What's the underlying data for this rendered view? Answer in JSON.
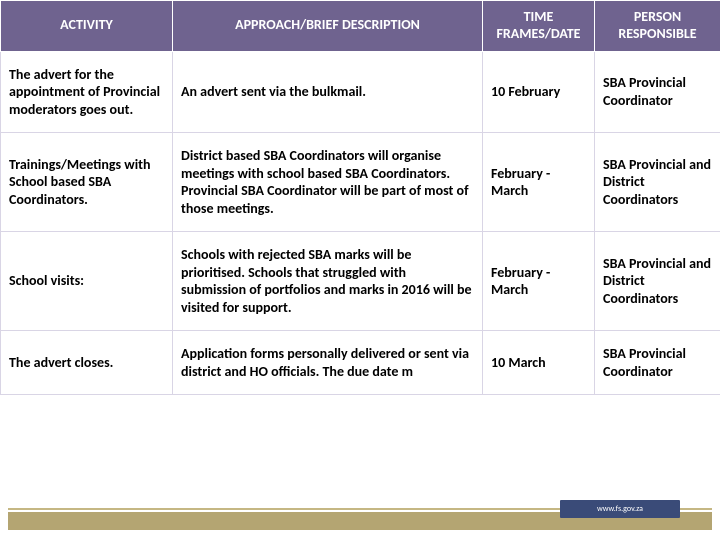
{
  "table": {
    "headers": {
      "activity": "ACTIVITY",
      "approach": "APPROACH/BRIEF DESCRIPTION",
      "time": "TIME FRAMES/DATE",
      "person": "PERSON RESPONSIBLE"
    },
    "rows": [
      {
        "activity": "The advert for the appointment of Provincial moderators goes out.",
        "approach": "An advert sent via the bulkmail.",
        "time": "10 February",
        "person": "SBA Provincial Coordinator"
      },
      {
        "activity": "Trainings/Meetings with School based SBA Coordinators.",
        "approach": "District based SBA Coordinators will organise meetings with school based SBA Coordinators. Provincial SBA Coordinator will be part of most of those meetings.",
        "time": "February - March",
        "person": "SBA Provincial and District Coordinators"
      },
      {
        "activity": "School visits:",
        "approach": "Schools with rejected SBA marks will be prioritised. Schools that struggled with submission of portfolios and marks in 2016 will be visited for support.",
        "time": "February - March",
        "person": "SBA Provincial and District Coordinators"
      },
      {
        "activity": "The advert closes.",
        "approach": "Application forms personally delivered or sent via district and HO officials. The due date m",
        "time": "10 March",
        "person": "SBA Provincial Coordinator"
      }
    ]
  },
  "style": {
    "header_bg": "#6f638f",
    "header_fg": "#ffffff",
    "cell_bg": "#ffffff",
    "cell_fg": "#000000",
    "border_color": "#d9d5e5",
    "footer_line_color": "#c5b783",
    "footer_band_color": "#b0a06a",
    "footer_tag_bg": "#3a4b78",
    "font_size_header": 14,
    "font_size_cell": 14
  },
  "footer": {
    "tag_text": "www.fs.gov.za"
  }
}
